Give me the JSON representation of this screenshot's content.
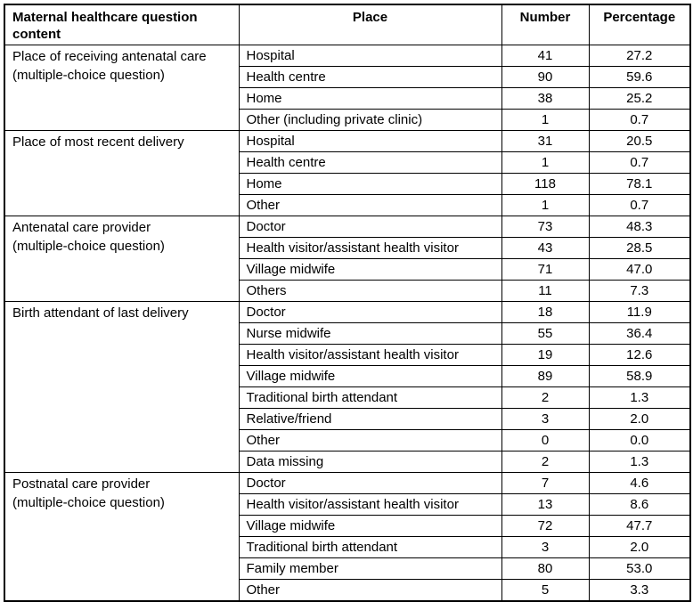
{
  "table": {
    "headers": {
      "question_content": "Maternal healthcare question content",
      "place": "Place",
      "number": "Number",
      "percentage": "Percentage"
    },
    "sections": [
      {
        "question": "Place of receiving antenatal care",
        "note": "(multiple-choice question)",
        "rows": [
          {
            "place": "Hospital",
            "number": "41",
            "percentage": "27.2"
          },
          {
            "place": "Health centre",
            "number": "90",
            "percentage": "59.6"
          },
          {
            "place": "Home",
            "number": "38",
            "percentage": "25.2"
          },
          {
            "place": "Other (including private clinic)",
            "number": "1",
            "percentage": "0.7"
          }
        ]
      },
      {
        "question": "Place of most recent delivery",
        "note": "",
        "rows": [
          {
            "place": "Hospital",
            "number": "31",
            "percentage": "20.5"
          },
          {
            "place": "Health centre",
            "number": "1",
            "percentage": "0.7"
          },
          {
            "place": "Home",
            "number": "118",
            "percentage": "78.1"
          },
          {
            "place": "Other",
            "number": "1",
            "percentage": "0.7"
          }
        ]
      },
      {
        "question": "Antenatal care provider",
        "note": "(multiple-choice question)",
        "rows": [
          {
            "place": "Doctor",
            "number": "73",
            "percentage": "48.3"
          },
          {
            "place": "Health visitor/assistant health visitor",
            "number": "43",
            "percentage": "28.5"
          },
          {
            "place": "Village midwife",
            "number": "71",
            "percentage": "47.0"
          },
          {
            "place": "Others",
            "number": "11",
            "percentage": "7.3"
          }
        ]
      },
      {
        "question": "Birth attendant of last delivery",
        "note": "",
        "rows": [
          {
            "place": "Doctor",
            "number": "18",
            "percentage": "11.9"
          },
          {
            "place": "Nurse midwife",
            "number": "55",
            "percentage": "36.4"
          },
          {
            "place": "Health visitor/assistant health visitor",
            "number": "19",
            "percentage": "12.6"
          },
          {
            "place": "Village midwife",
            "number": "89",
            "percentage": "58.9"
          },
          {
            "place": "Traditional birth attendant",
            "number": "2",
            "percentage": "1.3"
          },
          {
            "place": "Relative/friend",
            "number": "3",
            "percentage": "2.0"
          },
          {
            "place": "Other",
            "number": "0",
            "percentage": "0.0"
          },
          {
            "place": "Data missing",
            "number": "2",
            "percentage": "1.3"
          }
        ]
      },
      {
        "question": "Postnatal care provider",
        "note": "(multiple-choice question)",
        "rows": [
          {
            "place": "Doctor",
            "number": "7",
            "percentage": "4.6"
          },
          {
            "place": "Health visitor/assistant health visitor",
            "number": "13",
            "percentage": "8.6"
          },
          {
            "place": "Village midwife",
            "number": "72",
            "percentage": "47.7"
          },
          {
            "place": "Traditional birth attendant",
            "number": "3",
            "percentage": "2.0"
          },
          {
            "place": "Family member",
            "number": "80",
            "percentage": "53.0"
          },
          {
            "place": "Other",
            "number": "5",
            "percentage": "3.3"
          }
        ]
      }
    ]
  }
}
